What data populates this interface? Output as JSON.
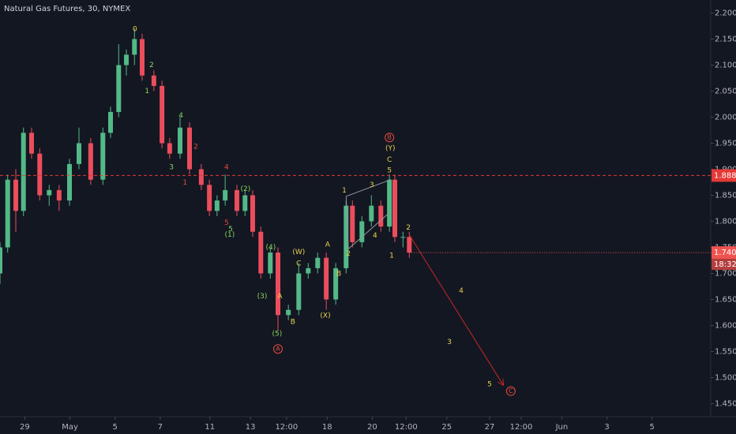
{
  "chart_data": {
    "type": "candlestick",
    "title": "Natural Gas Futures, 30, NYMEX",
    "up_color": "#53b987",
    "down_color": "#eb4d5c",
    "x": [
      -0.55,
      -0.38,
      -0.2,
      -0.03,
      0.15,
      0.33,
      0.54,
      0.76,
      0.99,
      1.2,
      1.46,
      1.73,
      1.9,
      2.08,
      2.25,
      2.43,
      2.6,
      2.86,
      3.04,
      3.21,
      3.44,
      3.65,
      3.91,
      4.09,
      4.26,
      4.44,
      4.7,
      4.88,
      5.05,
      5.23,
      5.44,
      5.61,
      5.84,
      6.07,
      6.28,
      6.49,
      6.68,
      6.89,
      7.12,
      7.26,
      7.47,
      7.68,
      7.89,
      8.08,
      8.2,
      8.38,
      8.52
    ],
    "open": [
      1.7,
      1.75,
      1.88,
      1.82,
      1.97,
      1.93,
      1.85,
      1.86,
      1.84,
      1.91,
      1.95,
      1.88,
      1.97,
      2.01,
      2.1,
      2.12,
      2.15,
      2.08,
      2.06,
      1.95,
      1.93,
      1.98,
      1.9,
      1.87,
      1.82,
      1.84,
      1.86,
      1.82,
      1.85,
      1.78,
      1.7,
      1.74,
      1.62,
      1.63,
      1.7,
      1.71,
      1.73,
      1.65,
      1.71,
      1.83,
      1.76,
      1.8,
      1.83,
      1.79,
      1.88,
      1.77,
      1.77
    ],
    "high": [
      1.76,
      1.89,
      1.9,
      1.98,
      1.98,
      1.94,
      1.87,
      1.87,
      1.92,
      1.98,
      1.96,
      1.98,
      2.02,
      2.14,
      2.13,
      2.17,
      2.16,
      2.09,
      2.07,
      1.96,
      2.0,
      1.99,
      1.91,
      1.88,
      1.85,
      1.89,
      1.87,
      1.86,
      1.86,
      1.79,
      1.75,
      1.75,
      1.64,
      1.72,
      1.72,
      1.74,
      1.74,
      1.72,
      1.84,
      1.84,
      1.81,
      1.85,
      1.84,
      1.89,
      1.89,
      1.78,
      1.78
    ],
    "low": [
      1.68,
      1.74,
      1.78,
      1.81,
      1.92,
      1.84,
      1.83,
      1.82,
      1.83,
      1.9,
      1.87,
      1.87,
      1.96,
      2.0,
      2.08,
      2.1,
      2.07,
      2.05,
      1.94,
      1.92,
      1.92,
      1.89,
      1.86,
      1.81,
      1.81,
      1.83,
      1.81,
      1.81,
      1.77,
      1.69,
      1.69,
      1.59,
      1.61,
      1.62,
      1.69,
      1.7,
      1.63,
      1.64,
      1.7,
      1.75,
      1.75,
      1.79,
      1.78,
      1.78,
      1.76,
      1.75,
      1.73
    ],
    "close": [
      1.75,
      1.88,
      1.82,
      1.97,
      1.93,
      1.85,
      1.86,
      1.84,
      1.91,
      1.95,
      1.88,
      1.97,
      2.01,
      2.1,
      2.12,
      2.15,
      2.08,
      2.06,
      1.95,
      1.93,
      1.98,
      1.9,
      1.87,
      1.82,
      1.84,
      1.86,
      1.82,
      1.85,
      1.78,
      1.7,
      1.74,
      1.62,
      1.63,
      1.7,
      1.71,
      1.73,
      1.65,
      1.71,
      1.83,
      1.76,
      1.8,
      1.83,
      1.79,
      1.88,
      1.77,
      1.77,
      1.74
    ],
    "xlim": [
      -0.55,
      15.2
    ],
    "ylim": [
      1.425,
      2.225
    ],
    "xticks": [
      {
        "value": 0,
        "label": "29"
      },
      {
        "value": 1,
        "label": "May"
      },
      {
        "value": 2,
        "label": "5"
      },
      {
        "value": 3,
        "label": "7"
      },
      {
        "value": 4.1,
        "label": "11"
      },
      {
        "value": 5,
        "label": "13"
      },
      {
        "value": 5.8,
        "label": "12:00"
      },
      {
        "value": 6.7,
        "label": "18"
      },
      {
        "value": 7.7,
        "label": "20"
      },
      {
        "value": 8.45,
        "label": "12:00"
      },
      {
        "value": 9.35,
        "label": "25"
      },
      {
        "value": 10.3,
        "label": "27"
      },
      {
        "value": 11,
        "label": "12:00"
      },
      {
        "value": 11.9,
        "label": "Jun"
      },
      {
        "value": 12.9,
        "label": "3"
      },
      {
        "value": 13.9,
        "label": "5"
      }
    ],
    "yticks": [
      {
        "value": 1.45,
        "label": "1.450"
      },
      {
        "value": 1.5,
        "label": "1.500"
      },
      {
        "value": 1.55,
        "label": "1.550"
      },
      {
        "value": 1.6,
        "label": "1.600"
      },
      {
        "value": 1.65,
        "label": "1.650"
      },
      {
        "value": 1.7,
        "label": "1.700"
      },
      {
        "value": 1.75,
        "label": "1.750"
      },
      {
        "value": 1.8,
        "label": "1.800"
      },
      {
        "value": 1.85,
        "label": "1.850"
      },
      {
        "value": 1.9,
        "label": "1.900"
      },
      {
        "value": 1.95,
        "label": "1.950"
      },
      {
        "value": 2.0,
        "label": "2.000"
      },
      {
        "value": 2.05,
        "label": "2.050"
      },
      {
        "value": 2.1,
        "label": "2.100"
      },
      {
        "value": 2.15,
        "label": "2.150"
      },
      {
        "value": 2.2,
        "label": "2.200"
      }
    ],
    "price_line": {
      "value": 1.888,
      "label": "1.888",
      "color": "#e53935"
    },
    "last_price": {
      "value": 1.74,
      "label": "1.740",
      "color": "#ef5350"
    },
    "countdown": "18:32",
    "annotations": [
      {
        "text": "0",
        "x": 2.44,
        "y": 2.169,
        "color": "#e8d44d"
      },
      {
        "text": "2",
        "x": 2.81,
        "y": 2.1,
        "color": "#8bd45a"
      },
      {
        "text": "1",
        "x": 2.71,
        "y": 2.05,
        "color": "#8bd45a"
      },
      {
        "text": "4",
        "x": 3.46,
        "y": 2.003,
        "color": "#8bd45a"
      },
      {
        "text": "2",
        "x": 3.79,
        "y": 1.943,
        "color": "#e84c3d"
      },
      {
        "text": "3",
        "x": 3.25,
        "y": 1.904,
        "color": "#8bd45a"
      },
      {
        "text": "1",
        "x": 3.55,
        "y": 1.874,
        "color": "#e84c3d"
      },
      {
        "text": "4",
        "x": 4.47,
        "y": 1.904,
        "color": "#e84c3d"
      },
      {
        "text": "(2)",
        "x": 4.89,
        "y": 1.862,
        "color": "#8bd45a"
      },
      {
        "text": "3",
        "x": 4.07,
        "y": 1.847,
        "color": "#e84c3d"
      },
      {
        "text": "5",
        "x": 4.47,
        "y": 1.797,
        "color": "#e84c3d"
      },
      {
        "text": "5",
        "x": 4.56,
        "y": 1.785,
        "color": "#8bd45a"
      },
      {
        "text": "(1)",
        "x": 4.54,
        "y": 1.774,
        "color": "#8bd45a"
      },
      {
        "text": "(4)",
        "x": 5.45,
        "y": 1.75,
        "color": "#8bd45a"
      },
      {
        "text": "(W)",
        "x": 6.07,
        "y": 1.741,
        "color": "#e8d44d"
      },
      {
        "text": "A",
        "x": 6.71,
        "y": 1.755,
        "color": "#e8d44d"
      },
      {
        "text": "C",
        "x": 6.07,
        "y": 1.719,
        "color": "#e8d44d"
      },
      {
        "text": "B",
        "x": 6.96,
        "y": 1.699,
        "color": "#e8d44d"
      },
      {
        "text": "(3)",
        "x": 5.26,
        "y": 1.656,
        "color": "#8bd45a"
      },
      {
        "text": "A",
        "x": 5.65,
        "y": 1.656,
        "color": "#e8d44d"
      },
      {
        "text": "B",
        "x": 5.94,
        "y": 1.607,
        "color": "#e8d44d"
      },
      {
        "text": "(X)",
        "x": 6.66,
        "y": 1.619,
        "color": "#e8d44d"
      },
      {
        "text": "(5)",
        "x": 5.59,
        "y": 1.584,
        "color": "#8bd45a"
      },
      {
        "text": "1",
        "x": 7.08,
        "y": 1.859,
        "color": "#e8d44d"
      },
      {
        "text": "3",
        "x": 7.69,
        "y": 1.87,
        "color": "#e8d44d"
      },
      {
        "text": "2",
        "x": 7.17,
        "y": 1.738,
        "color": "#e8d44d"
      },
      {
        "text": "4",
        "x": 7.76,
        "y": 1.773,
        "color": "#e8d44d"
      },
      {
        "text": "1",
        "x": 8.13,
        "y": 1.734,
        "color": "#e8d44d"
      },
      {
        "text": "2",
        "x": 8.5,
        "y": 1.788,
        "color": "#e8d44d"
      },
      {
        "text": "(Y)",
        "x": 8.1,
        "y": 1.94,
        "color": "#e8d44d"
      },
      {
        "text": "C",
        "x": 8.08,
        "y": 1.918,
        "color": "#e8d44d"
      },
      {
        "text": "5",
        "x": 8.08,
        "y": 1.898,
        "color": "#e8d44d"
      },
      {
        "text": "4",
        "x": 9.67,
        "y": 1.667,
        "color": "#e8d44d"
      },
      {
        "text": "3",
        "x": 9.41,
        "y": 1.568,
        "color": "#e8d44d"
      },
      {
        "text": "5",
        "x": 10.3,
        "y": 1.487,
        "color": "#e8d44d"
      },
      {
        "text": "A",
        "x": 5.61,
        "y": 1.555,
        "color": "#e84c3d",
        "circled": true
      },
      {
        "text": "B",
        "x": 8.08,
        "y": 1.961,
        "color": "#e84c3d",
        "circled": true
      },
      {
        "text": "C",
        "x": 10.77,
        "y": 1.474,
        "color": "#e84c3d",
        "circled": true
      }
    ],
    "drawings": [
      {
        "x1": 7.12,
        "y1": 1.848,
        "x2": 8.11,
        "y2": 1.88,
        "color": "#9598a1"
      },
      {
        "x1": 7.17,
        "y1": 1.747,
        "x2": 8.11,
        "y2": 1.819,
        "color": "#9598a1"
      },
      {
        "x1": 7.12,
        "y1": 1.848,
        "x2": 7.17,
        "y2": 1.747,
        "color": "#9598a1"
      },
      {
        "x1": 8.52,
        "y1": 1.774,
        "x2": 10.6,
        "y2": 1.486,
        "color": "#c62828",
        "arrow": true
      }
    ]
  }
}
